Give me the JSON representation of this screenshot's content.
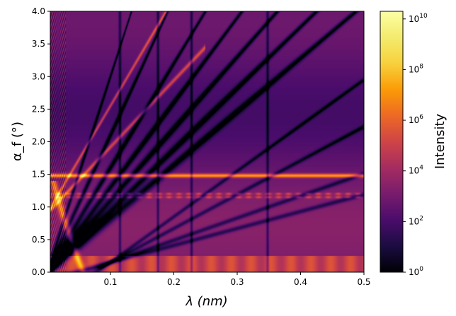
{
  "chart_data": {
    "type": "heatmap",
    "title": "",
    "xlabel": "λ (nm)",
    "ylabel": "α_f (°)",
    "xlim": [
      0.005,
      0.5
    ],
    "ylim": [
      0,
      4.0
    ],
    "x_ticks": [
      {
        "value": 0.1,
        "label": "0.1"
      },
      {
        "value": 0.2,
        "label": "0.2"
      },
      {
        "value": 0.3,
        "label": "0.3"
      },
      {
        "value": 0.4,
        "label": "0.4"
      },
      {
        "value": 0.5,
        "label": "0.5"
      }
    ],
    "y_ticks": [
      {
        "value": 0.0,
        "label": "0.0"
      },
      {
        "value": 0.5,
        "label": "0.5"
      },
      {
        "value": 1.0,
        "label": "1.0"
      },
      {
        "value": 1.5,
        "label": "1.5"
      },
      {
        "value": 2.0,
        "label": "2.0"
      },
      {
        "value": 2.5,
        "label": "2.5"
      },
      {
        "value": 3.0,
        "label": "3.0"
      },
      {
        "value": 3.5,
        "label": "3.5"
      },
      {
        "value": 4.0,
        "label": "4.0"
      }
    ],
    "colorbar": {
      "label": "Intensity",
      "scale": "log",
      "colormap": "inferno",
      "range": [
        1,
        20000000000
      ],
      "ticks": [
        {
          "exponent": 0,
          "value": 1
        },
        {
          "exponent": 2,
          "value": 100
        },
        {
          "exponent": 4,
          "value": 10000
        },
        {
          "exponent": 6,
          "value": 1000000
        },
        {
          "exponent": 8,
          "value": 100000000
        },
        {
          "exponent": 10,
          "value": 10000000000
        }
      ]
    },
    "features": {
      "bright_horizontal_band_alpha_deg": 1.48,
      "secondary_bands_alpha_deg": [
        1.2,
        1.15
      ],
      "vertical_dark_lines_lambda_nm": [
        0.115,
        0.175,
        0.228,
        0.348
      ],
      "dark_diagonal_slopes_deg_per_nm": [
        30.0,
        21.0,
        16.0,
        13.0,
        11.0,
        9.4,
        8.2
      ]
    }
  }
}
